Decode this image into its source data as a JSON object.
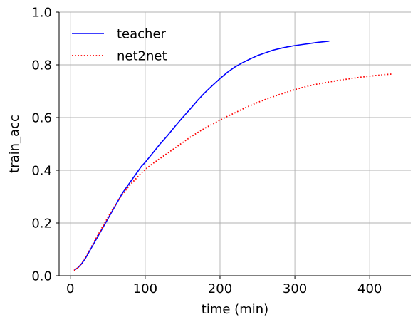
{
  "chart_data": {
    "type": "line",
    "xlabel": "time (min)",
    "ylabel": "train_acc",
    "xlim": [
      -15,
      455
    ],
    "ylim": [
      0.0,
      1.0
    ],
    "xticks": [
      0,
      100,
      200,
      300,
      400
    ],
    "yticks": [
      0.0,
      0.2,
      0.4,
      0.6,
      0.8,
      1.0
    ],
    "xtick_labels": [
      "0",
      "100",
      "200",
      "300",
      "400"
    ],
    "ytick_labels": [
      "0.0",
      "0.2",
      "0.4",
      "0.6",
      "0.8",
      "1.0"
    ],
    "grid": true,
    "legend_position": "upper-left",
    "series": [
      {
        "name": "teacher",
        "color": "#0000ff",
        "style": "solid",
        "x": [
          5,
          10,
          15,
          20,
          25,
          30,
          35,
          40,
          45,
          50,
          55,
          60,
          65,
          70,
          75,
          80,
          85,
          90,
          95,
          100,
          110,
          120,
          130,
          140,
          150,
          160,
          170,
          180,
          190,
          200,
          210,
          220,
          230,
          240,
          250,
          260,
          270,
          280,
          290,
          300,
          310,
          320,
          330,
          340,
          346
        ],
        "y": [
          0.02,
          0.03,
          0.045,
          0.065,
          0.09,
          0.115,
          0.14,
          0.165,
          0.19,
          0.215,
          0.24,
          0.265,
          0.29,
          0.315,
          0.335,
          0.355,
          0.375,
          0.395,
          0.415,
          0.43,
          0.465,
          0.5,
          0.532,
          0.567,
          0.6,
          0.632,
          0.665,
          0.695,
          0.722,
          0.748,
          0.772,
          0.792,
          0.808,
          0.822,
          0.835,
          0.845,
          0.855,
          0.862,
          0.868,
          0.873,
          0.877,
          0.881,
          0.885,
          0.888,
          0.89
        ]
      },
      {
        "name": "net2net",
        "color": "#ff0000",
        "style": "dotted",
        "x": [
          5,
          10,
          15,
          20,
          25,
          30,
          35,
          40,
          45,
          50,
          55,
          60,
          65,
          70,
          75,
          80,
          85,
          90,
          95,
          100,
          110,
          120,
          130,
          140,
          150,
          160,
          170,
          180,
          190,
          200,
          210,
          220,
          230,
          240,
          250,
          260,
          270,
          280,
          290,
          300,
          310,
          320,
          330,
          340,
          350,
          360,
          370,
          380,
          390,
          400,
          410,
          420,
          430
        ],
        "y": [
          0.02,
          0.03,
          0.045,
          0.07,
          0.095,
          0.12,
          0.145,
          0.17,
          0.195,
          0.22,
          0.245,
          0.268,
          0.29,
          0.31,
          0.328,
          0.345,
          0.36,
          0.375,
          0.39,
          0.403,
          0.425,
          0.445,
          0.465,
          0.485,
          0.505,
          0.525,
          0.543,
          0.56,
          0.575,
          0.59,
          0.605,
          0.618,
          0.632,
          0.645,
          0.657,
          0.668,
          0.678,
          0.688,
          0.697,
          0.706,
          0.714,
          0.721,
          0.727,
          0.732,
          0.737,
          0.742,
          0.746,
          0.75,
          0.754,
          0.757,
          0.76,
          0.763,
          0.765
        ]
      }
    ]
  }
}
